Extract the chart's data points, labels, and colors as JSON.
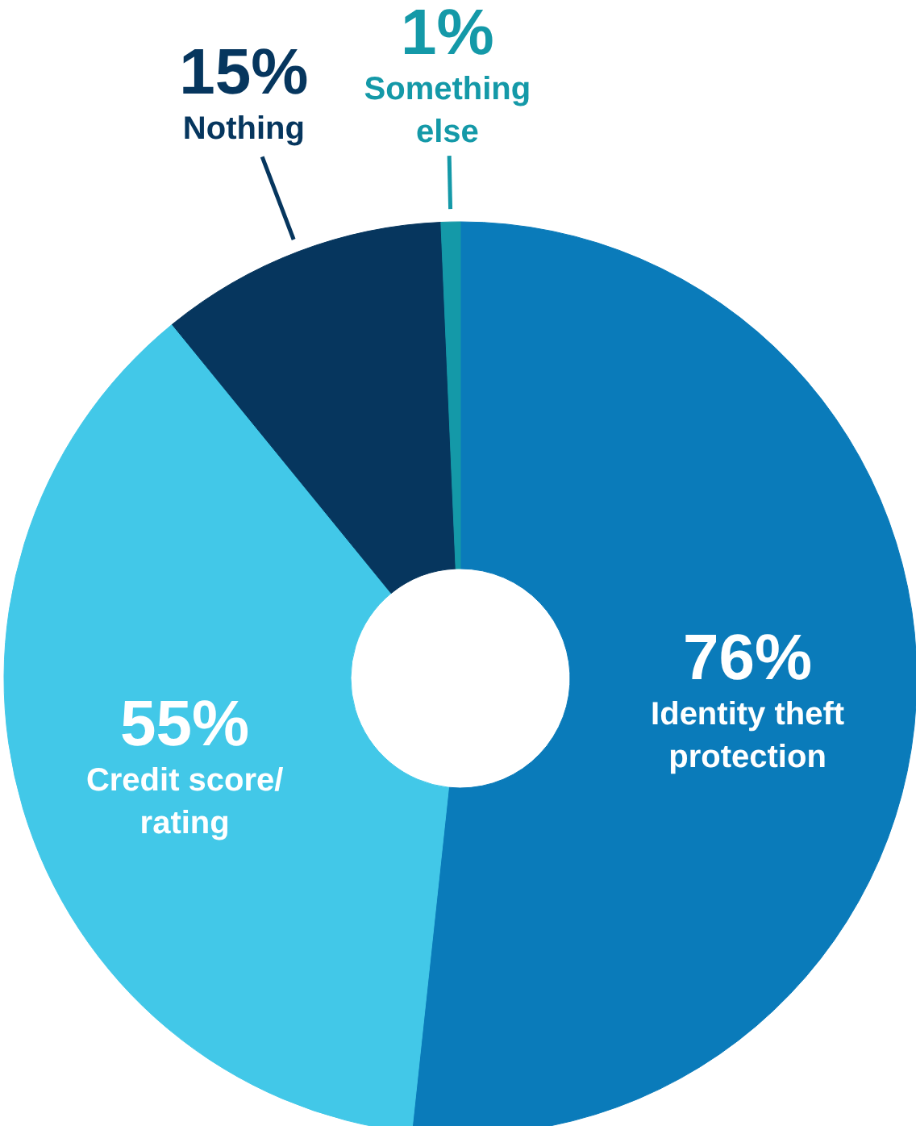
{
  "chart_data": {
    "type": "donut",
    "categories": [
      "Identity theft protection",
      "Credit score/ rating",
      "Nothing",
      "Something else"
    ],
    "values": [
      76,
      55,
      15,
      1
    ],
    "colors": [
      "#0a7bba",
      "#42c8e8",
      "#06365e",
      "#1499a8"
    ],
    "value_labels": [
      "76%",
      "55%",
      "15%",
      "1%"
    ]
  }
}
